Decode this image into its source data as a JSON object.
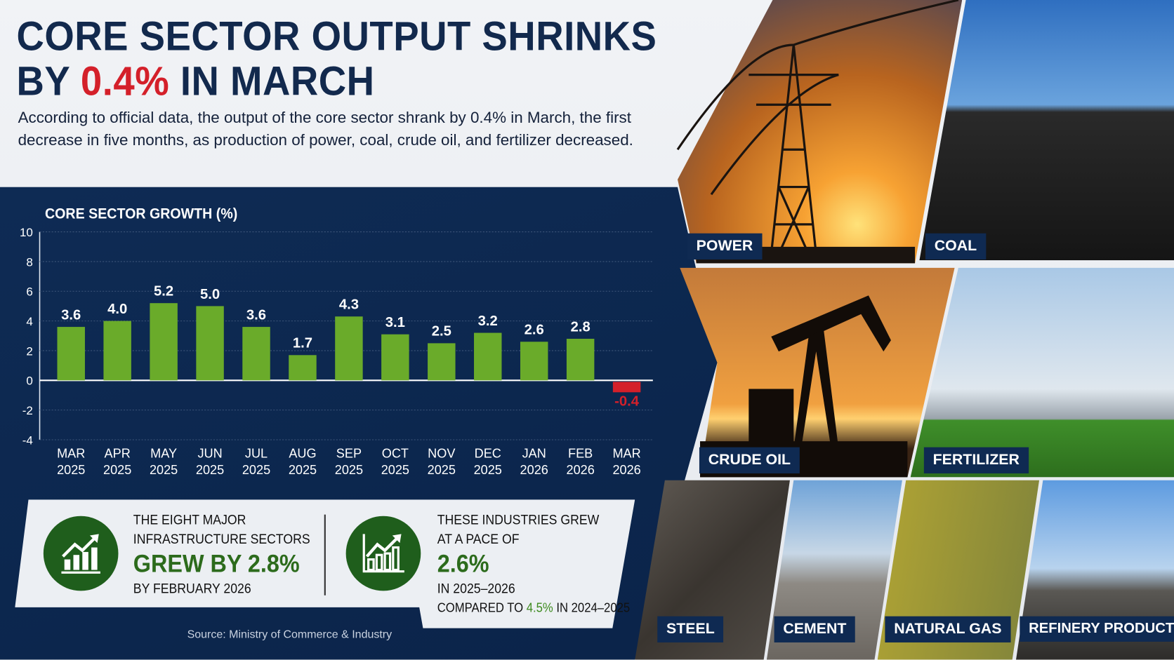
{
  "header": {
    "title_line1": "CORE SECTOR OUTPUT SHRINKS",
    "title_line2_pre": "BY ",
    "title_line2_highlight": "0.4%",
    "title_line2_post": " IN MARCH",
    "subtitle": "According to official data, the output of the core sector shrank by 0.4% in March, the first decrease in five months, as production of power, coal, crude oil, and fertilizer decreased."
  },
  "colors": {
    "navy": "#0f2d57",
    "red": "#d4202a",
    "bar_green": "#6aab2a",
    "dark_green": "#1f5e1c"
  },
  "chart_data": {
    "type": "bar",
    "title": "CORE SECTOR GROWTH (%)",
    "xlabel": "",
    "ylabel": "",
    "ylim": [
      -4,
      10
    ],
    "yticks": [
      10,
      8,
      6,
      4,
      2,
      0,
      -2,
      -4
    ],
    "grid": true,
    "categories": [
      [
        "MAR",
        "2025"
      ],
      [
        "APR",
        "2025"
      ],
      [
        "MAY",
        "2025"
      ],
      [
        "JUN",
        "2025"
      ],
      [
        "JUL",
        "2025"
      ],
      [
        "AUG",
        "2025"
      ],
      [
        "SEP",
        "2025"
      ],
      [
        "OCT",
        "2025"
      ],
      [
        "NOV",
        "2025"
      ],
      [
        "DEC",
        "2025"
      ],
      [
        "JAN",
        "2026"
      ],
      [
        "FEB",
        "2026"
      ],
      [
        "MAR",
        "2026"
      ]
    ],
    "values": [
      3.6,
      4.0,
      5.2,
      5.0,
      3.6,
      1.7,
      4.3,
      3.1,
      2.5,
      3.2,
      2.6,
      2.8,
      -0.4
    ],
    "value_labels": [
      "3.6",
      "4.0",
      "5.2",
      "5.0",
      "3.6",
      "1.7",
      "4.3",
      "3.1",
      "2.5",
      "3.2",
      "2.6",
      "2.8",
      "-0.4"
    ]
  },
  "stats": {
    "left": {
      "line1": "THE EIGHT MAJOR",
      "line2": "INFRASTRUCTURE SECTORS",
      "highlight": "GREW BY 2.8%",
      "line3": "BY FEBRUARY 2026"
    },
    "right": {
      "line1": "THESE INDUSTRIES GREW",
      "line2": "AT A PACE OF",
      "highlight": "2.6%",
      "line3": "IN 2025–2026",
      "compare_pre": "COMPARED TO ",
      "compare_value": "4.5%",
      "compare_post": " IN 2024–2025"
    }
  },
  "source": "Source: Ministry of Commerce & Industry",
  "sectors": [
    "POWER",
    "COAL",
    "CRUDE OIL",
    "FERTILIZER",
    "STEEL",
    "CEMENT",
    "NATURAL GAS",
    "REFINERY PRODUCTS"
  ]
}
